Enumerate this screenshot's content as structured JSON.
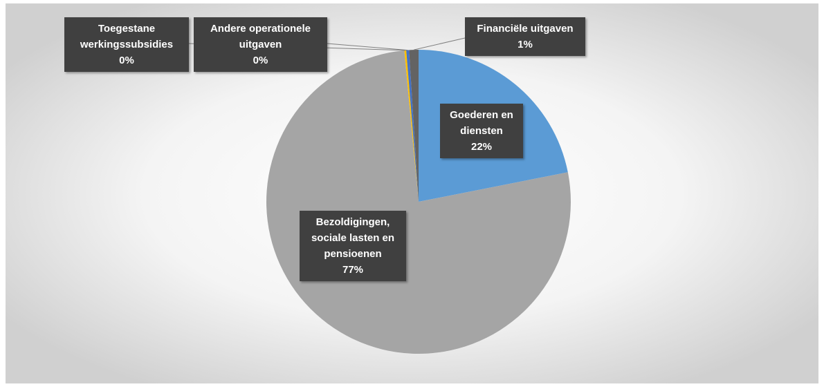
{
  "chart_data": {
    "type": "pie",
    "categories": [
      "Goederen en diensten",
      "Bezoldigingen, sociale lasten en pensioenen",
      "Toegestane werkingssubsidies",
      "Andere operationele uitgaven",
      "Financiële uitgaven"
    ],
    "values": [
      22,
      77,
      0.2,
      0.3,
      1
    ],
    "value_labels": [
      "22%",
      "77%",
      "0%",
      "0%",
      "1%"
    ],
    "colors": [
      "#5b9bd5",
      "#a5a5a5",
      "#ffc000",
      "#4472c4",
      "#636363"
    ]
  }
}
